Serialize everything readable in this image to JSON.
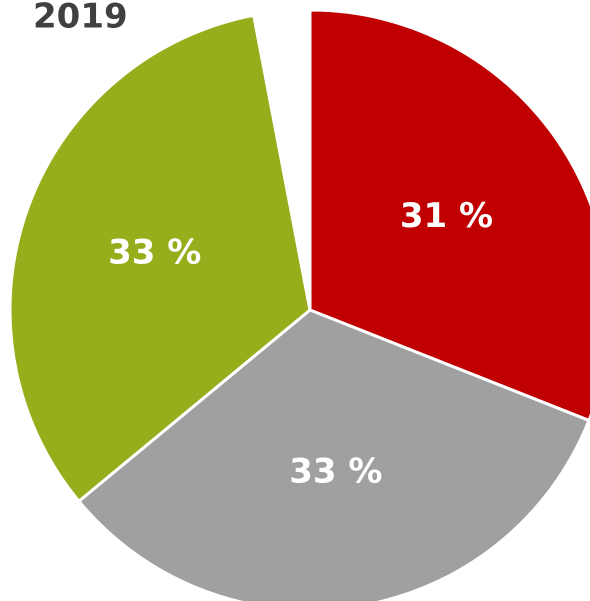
{
  "chart_data": {
    "type": "pie",
    "title": "2019",
    "values": [
      31,
      33,
      33,
      3
    ],
    "value_labels": [
      "31 %",
      "33 %",
      "33 %",
      null
    ],
    "colors": [
      "#c00000",
      "#a0a0a0",
      "#97ad1b",
      "#ffffff"
    ]
  }
}
